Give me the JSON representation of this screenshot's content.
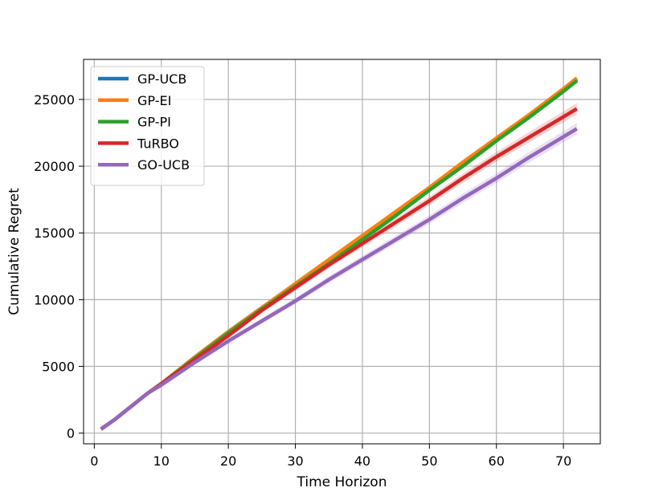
{
  "chart_data": {
    "type": "line",
    "title": "",
    "xlabel": "Time Horizon",
    "ylabel": "Cumulative Regret",
    "xlim": [
      -1.6,
      75.5
    ],
    "ylim": [
      -800,
      28000
    ],
    "xticks": [
      0,
      10,
      20,
      30,
      40,
      50,
      60,
      70
    ],
    "yticks": [
      0,
      5000,
      10000,
      15000,
      20000,
      25000
    ],
    "grid": true,
    "legend_position": "top-left",
    "series": [
      {
        "name": "GP-UCB",
        "color": "#1f77b4",
        "x": [
          1,
          3,
          5,
          8,
          10,
          15,
          20,
          25,
          30,
          35,
          40,
          45,
          50,
          55,
          60,
          65,
          70,
          72
        ],
        "y": [
          300,
          1000,
          1800,
          3000,
          3700,
          5700,
          7600,
          9400,
          11100,
          12900,
          14700,
          16500,
          18300,
          20200,
          22000,
          23800,
          25700,
          26500
        ],
        "band": 100
      },
      {
        "name": "GP-EI",
        "color": "#ff7f0e",
        "x": [
          1,
          3,
          5,
          8,
          10,
          15,
          20,
          25,
          30,
          35,
          40,
          45,
          50,
          55,
          60,
          65,
          70,
          72
        ],
        "y": [
          300,
          1000,
          1800,
          3000,
          3700,
          5700,
          7600,
          9400,
          11200,
          13000,
          14800,
          16600,
          18400,
          20300,
          22100,
          23900,
          25800,
          26600
        ],
        "band": 150
      },
      {
        "name": "GP-PI",
        "color": "#2ca02c",
        "x": [
          1,
          3,
          5,
          8,
          10,
          15,
          20,
          25,
          30,
          35,
          40,
          45,
          50,
          55,
          60,
          65,
          70,
          72
        ],
        "y": [
          300,
          1000,
          1800,
          3000,
          3700,
          5600,
          7500,
          9300,
          11000,
          12700,
          14500,
          16300,
          18200,
          20000,
          21900,
          23700,
          25600,
          26400
        ],
        "band": 150
      },
      {
        "name": "TuRBO",
        "color": "#d62728",
        "x": [
          1,
          3,
          5,
          8,
          10,
          15,
          20,
          25,
          30,
          35,
          40,
          45,
          50,
          55,
          60,
          65,
          70,
          72
        ],
        "y": [
          300,
          1000,
          1800,
          3000,
          3700,
          5500,
          7300,
          9200,
          10900,
          12600,
          14200,
          15800,
          17400,
          19100,
          20700,
          22200,
          23700,
          24300
        ],
        "band": 400
      },
      {
        "name": "GO-UCB",
        "color": "#9467bd",
        "x": [
          1,
          3,
          5,
          8,
          10,
          15,
          20,
          25,
          30,
          35,
          40,
          45,
          50,
          55,
          60,
          65,
          70,
          72
        ],
        "y": [
          300,
          1000,
          1800,
          3000,
          3600,
          5300,
          6900,
          8400,
          9900,
          11500,
          13000,
          14500,
          16000,
          17600,
          19100,
          20700,
          22200,
          22800
        ],
        "band": 400
      }
    ]
  }
}
